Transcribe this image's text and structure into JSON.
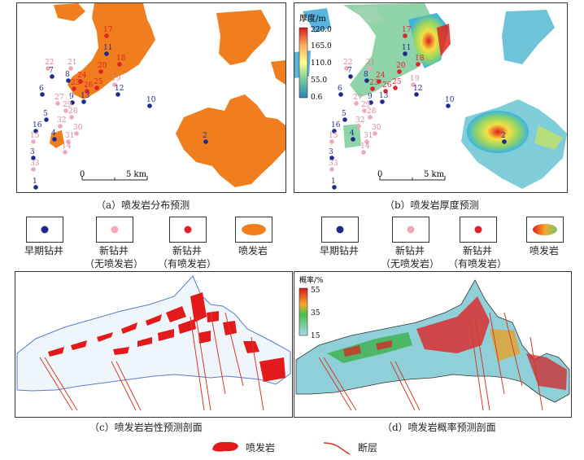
{
  "panels": {
    "a": {
      "caption": "（a）喷发岩分布预测"
    },
    "b": {
      "caption": "（b）喷发岩厚度预测",
      "colorbar_title": "厚度/m",
      "colorbar_ticks": [
        "220.0",
        "165.0",
        "110.0",
        "55.0",
        "0.6"
      ]
    },
    "c": {
      "caption": "（c）喷发岩岩性预测剖面"
    },
    "d": {
      "caption": "（d）喷发岩概率预测剖面",
      "colorbar_title": "概率/%",
      "colorbar_ticks": [
        "55",
        "35",
        "15"
      ]
    }
  },
  "scale_bar": {
    "zero": "0",
    "end": "5 km"
  },
  "wells": [
    {
      "id": "17",
      "type": "new-eruptive"
    },
    {
      "id": "11",
      "type": "early"
    },
    {
      "id": "18",
      "type": "new-eruptive"
    },
    {
      "id": "22",
      "type": "new-no-eruptive"
    },
    {
      "id": "21",
      "type": "new-no-eruptive"
    },
    {
      "id": "7",
      "type": "early"
    },
    {
      "id": "8",
      "type": "early"
    },
    {
      "id": "24",
      "type": "new-eruptive"
    },
    {
      "id": "20",
      "type": "new-eruptive"
    },
    {
      "id": "19",
      "type": "new-no-eruptive"
    },
    {
      "id": "6",
      "type": "early"
    },
    {
      "id": "23",
      "type": "new-eruptive"
    },
    {
      "id": "26",
      "type": "new-eruptive"
    },
    {
      "id": "25",
      "type": "new-eruptive"
    },
    {
      "id": "12",
      "type": "early"
    },
    {
      "id": "10",
      "type": "early"
    },
    {
      "id": "27",
      "type": "new-no-eruptive"
    },
    {
      "id": "9",
      "type": "early"
    },
    {
      "id": "13",
      "type": "early"
    },
    {
      "id": "5",
      "type": "early"
    },
    {
      "id": "29",
      "type": "new-no-eruptive"
    },
    {
      "id": "28",
      "type": "new-no-eruptive"
    },
    {
      "id": "16",
      "type": "early"
    },
    {
      "id": "32",
      "type": "new-no-eruptive"
    },
    {
      "id": "30",
      "type": "new-no-eruptive"
    },
    {
      "id": "2",
      "type": "early"
    },
    {
      "id": "4",
      "type": "early"
    },
    {
      "id": "15",
      "type": "new-no-eruptive"
    },
    {
      "id": "31",
      "type": "new-no-eruptive"
    },
    {
      "id": "14",
      "type": "new-no-eruptive"
    },
    {
      "id": "3",
      "type": "early"
    },
    {
      "id": "33",
      "type": "new-no-eruptive"
    },
    {
      "id": "1",
      "type": "early"
    }
  ],
  "legend_map": {
    "early": "早期钻井",
    "new_no": "新钻井\n（无喷发岩）",
    "new_yes": "新钻井\n（有喷发岩）",
    "eruptive": "喷发岩"
  },
  "legend_bottom": {
    "eruptive": "喷发岩",
    "fault": "断层"
  },
  "colors": {
    "early_well": "#1f2a8c",
    "new_no_well": "#f2a7b8",
    "new_yes_well": "#e0202a",
    "eruptive_orange": "#f07d1e",
    "section_red": "#e31a1c",
    "fault_red": "#d83a2a",
    "section_fill": "#eef6fb",
    "section_outline": "#5a7bd0"
  }
}
